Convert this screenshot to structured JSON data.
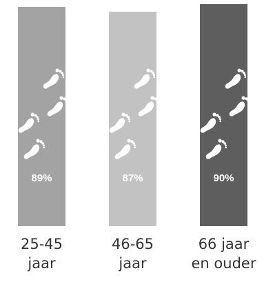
{
  "chart_data": {
    "type": "bar",
    "categories": [
      [
        "25-45",
        "jaar"
      ],
      [
        "46-65",
        "jaar"
      ],
      [
        "66 jaar",
        "en ouder"
      ]
    ],
    "values": [
      89,
      87,
      90
    ],
    "value_labels": [
      "89%",
      "87%",
      "90%"
    ],
    "bar_colors": [
      "#a3a3a3",
      "#c2c2c2",
      "#5e5e5e"
    ],
    "icon": "footprints-icon",
    "title": "",
    "xlabel": "",
    "ylabel": ""
  }
}
